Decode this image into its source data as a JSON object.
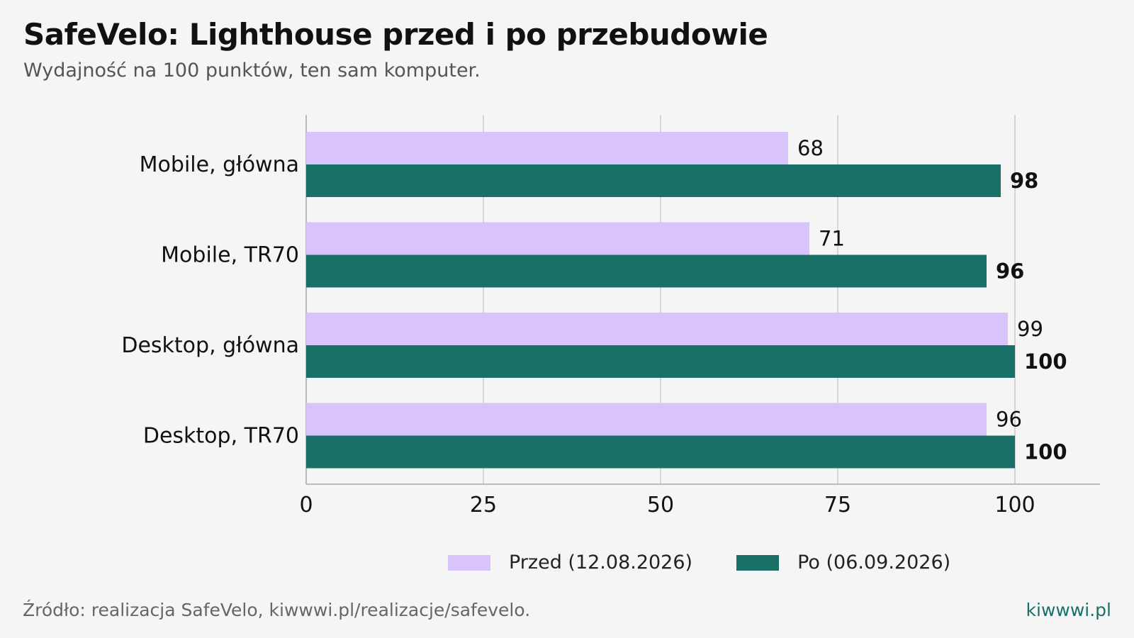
{
  "header": {
    "title": "SafeVelo: Lighthouse przed i po przebudowie",
    "subtitle": "Wydajność na 100 punktów, ten sam komputer."
  },
  "footer": {
    "source": "Źródło: realizacja SafeVelo, kiwwwi.pl/realizacje/safevelo.",
    "brand": "kiwwwi.pl"
  },
  "colors": {
    "before": "#d9c3fb",
    "after": "#1a7066",
    "grid": "#d6d6d6",
    "axis": "#bbbbbb",
    "text": "#111111"
  },
  "chart_data": {
    "type": "bar",
    "orientation": "horizontal",
    "categories": [
      "Mobile, główna",
      "Mobile, TR70",
      "Desktop, główna",
      "Desktop, TR70"
    ],
    "series": [
      {
        "name": "Przed (12.08.2026)",
        "values": [
          68,
          71,
          99,
          96
        ]
      },
      {
        "name": "Po (06.09.2026)",
        "values": [
          98,
          96,
          100,
          100
        ]
      }
    ],
    "xlim": [
      0,
      112
    ],
    "xticks": [
      "0",
      "25",
      "50",
      "75",
      "100"
    ],
    "grid": true,
    "legend_position": "bottom"
  }
}
